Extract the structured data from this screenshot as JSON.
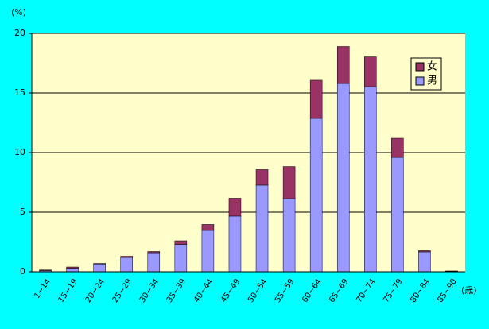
{
  "chart_data": {
    "type": "bar",
    "stacked": true,
    "y_unit_label": "(%)",
    "x_unit_label": "(歳)",
    "categories": [
      "1~14",
      "15~19",
      "20~24",
      "25~29",
      "30~34",
      "35~39",
      "40~44",
      "45~49",
      "50~54",
      "55~59",
      "60~64",
      "65~69",
      "70~74",
      "75~79",
      "80~84",
      "85~90"
    ],
    "series": [
      {
        "name": "男",
        "color": "#9999ff",
        "values": [
          0.1,
          0.3,
          0.65,
          1.2,
          1.6,
          2.3,
          3.47,
          4.67,
          7.27,
          6.13,
          12.87,
          15.8,
          15.53,
          9.6,
          1.67,
          0.05
        ]
      },
      {
        "name": "女",
        "color": "#993366",
        "values": [
          0.05,
          0.1,
          0.05,
          0.1,
          0.1,
          0.3,
          0.5,
          1.5,
          1.3,
          2.7,
          3.2,
          3.1,
          2.5,
          1.6,
          0.1,
          0.02
        ]
      }
    ],
    "ylim": [
      0,
      20
    ],
    "yticks": [
      0,
      5,
      10,
      15,
      20
    ],
    "grid": true,
    "legend": "upper right"
  }
}
